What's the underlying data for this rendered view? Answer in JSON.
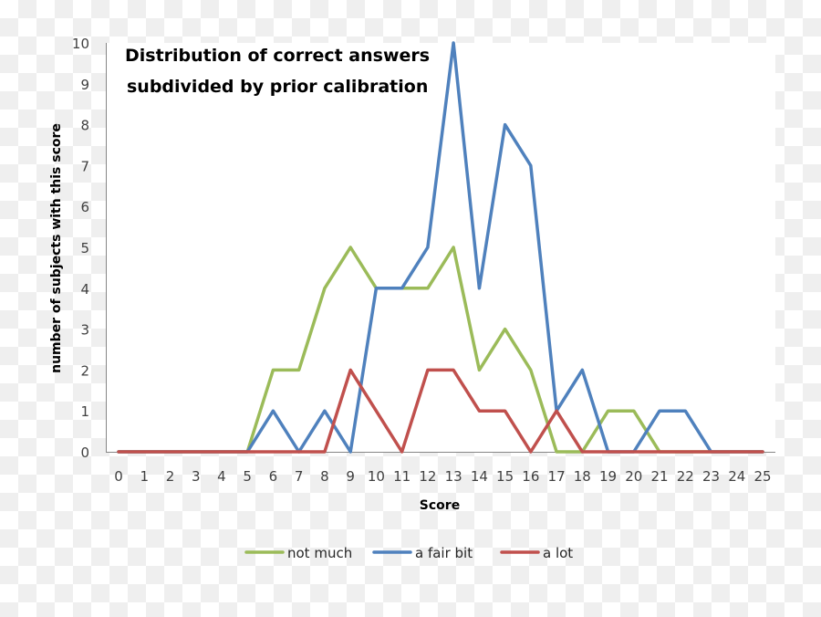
{
  "chart_data": {
    "type": "line",
    "title": [
      "Distribution of correct answers",
      "subdivided by prior calibration"
    ],
    "xlabel": "Score",
    "ylabel": "number of subjects with this score",
    "x": [
      0,
      1,
      2,
      3,
      4,
      5,
      6,
      7,
      8,
      9,
      10,
      11,
      12,
      13,
      14,
      15,
      16,
      17,
      18,
      19,
      20,
      21,
      22,
      23,
      24,
      25
    ],
    "xlim": [
      0,
      25
    ],
    "ylim": [
      0,
      10
    ],
    "yticks": [
      0,
      1,
      2,
      3,
      4,
      5,
      6,
      7,
      8,
      9,
      10
    ],
    "grid": false,
    "legend_position": "bottom",
    "series": [
      {
        "name": "not much",
        "color": "#9BBB59",
        "values": [
          0,
          0,
          0,
          0,
          0,
          0,
          2,
          2,
          4,
          5,
          4,
          4,
          4,
          5,
          2,
          3,
          2,
          0,
          0,
          1,
          1,
          0,
          0,
          0,
          0,
          0
        ]
      },
      {
        "name": "a fair bit",
        "color": "#4F81BD",
        "values": [
          0,
          0,
          0,
          0,
          0,
          0,
          1,
          0,
          1,
          0,
          4,
          4,
          5,
          10,
          4,
          8,
          7,
          1,
          2,
          0,
          0,
          1,
          1,
          0,
          0,
          0
        ]
      },
      {
        "name": "a lot",
        "color": "#C0504D",
        "values": [
          0,
          0,
          0,
          0,
          0,
          0,
          0,
          0,
          0,
          2,
          1,
          0,
          2,
          2,
          1,
          1,
          0,
          1,
          0,
          0,
          0,
          0,
          0,
          0,
          0,
          0
        ]
      }
    ]
  }
}
